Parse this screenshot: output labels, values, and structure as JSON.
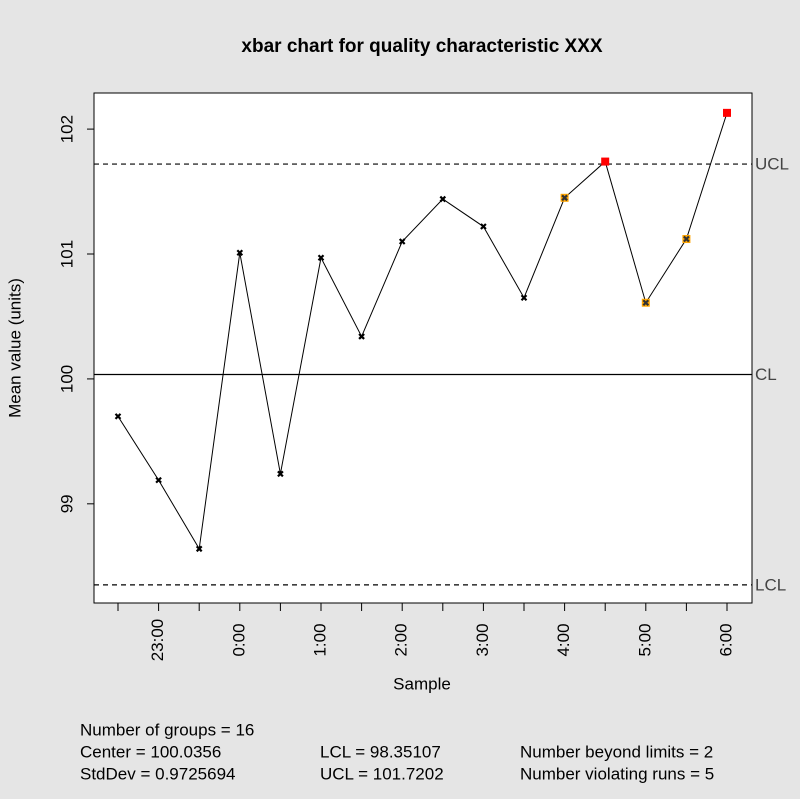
{
  "chart_data": {
    "type": "line",
    "title": "xbar chart for quality characteristic XXX",
    "x_label": "Sample",
    "y_label": "Mean value (units)",
    "categories": [
      null,
      "23:00",
      null,
      "0:00",
      null,
      "1:00",
      null,
      "2:00",
      null,
      "3:00",
      null,
      "4:00",
      null,
      "5:00",
      null,
      "6:00"
    ],
    "series": [
      {
        "color": "#000000",
        "values": [
          99.7,
          99.19,
          98.64,
          101.01,
          99.24,
          100.97,
          100.34,
          101.1,
          101.44,
          101.22,
          100.65,
          101.45,
          101.74,
          100.61,
          101.12,
          102.13
        ],
        "point_colors": [
          "#000000",
          "#000000",
          "#000000",
          "#000000",
          "#000000",
          "#000000",
          "#000000",
          "#000000",
          "#000000",
          "#000000",
          "#000000",
          "#ffa500",
          "#ff0000",
          "#ffa500",
          "#ffa500",
          "#ff0000"
        ]
      }
    ],
    "limit_lines": [
      {
        "label": "UCL",
        "value": 101.7202,
        "dashed": true
      },
      {
        "label": "CL",
        "value": 100.0356,
        "dashed": false
      },
      {
        "label": "LCL",
        "value": 98.35107,
        "dashed": true
      }
    ],
    "ylim": [
      98.206,
      102.289
    ],
    "yticks": [
      99,
      100,
      101,
      102
    ],
    "stats": [
      [
        "Number of groups = 16"
      ],
      [
        "Center = 100.0356",
        "LCL = 98.35107",
        "Number beyond limits = 2"
      ],
      [
        "StdDev = 0.9725694",
        "UCL = 101.7202",
        "Number violating runs = 5"
      ]
    ]
  }
}
